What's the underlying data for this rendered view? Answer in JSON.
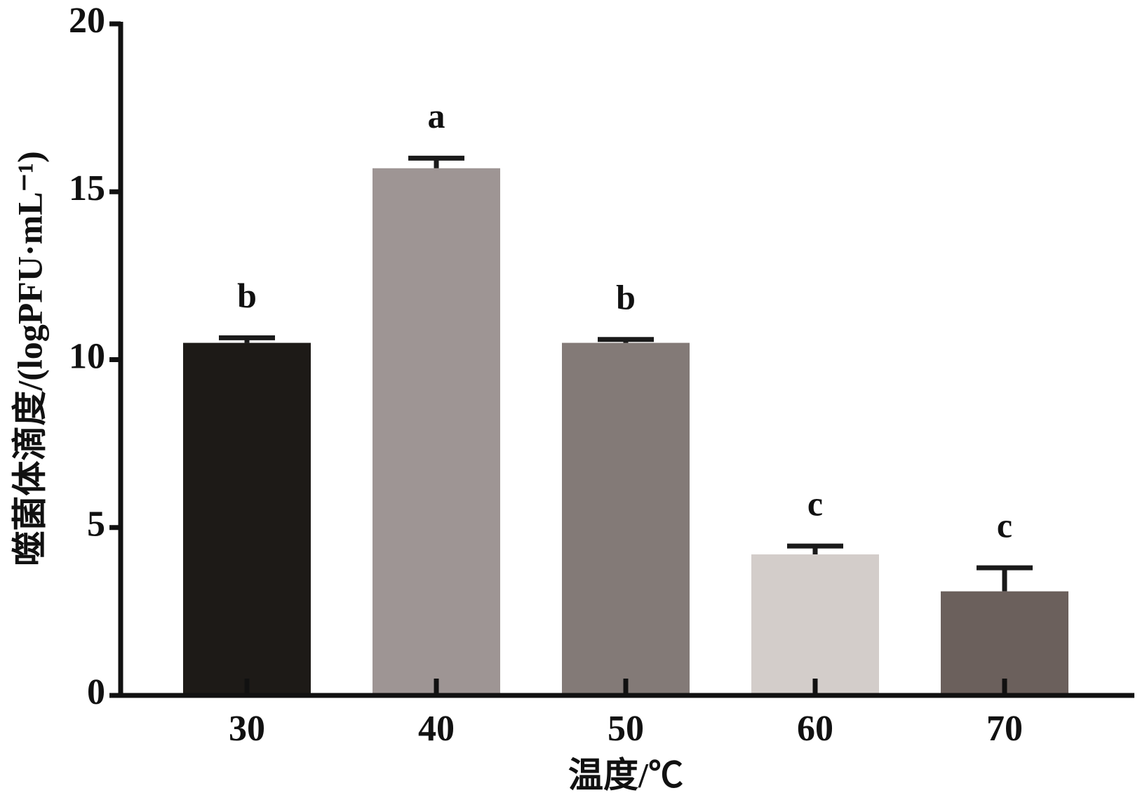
{
  "chart_data": {
    "type": "bar",
    "x_label": "温度/℃",
    "y_label": "噬菌体滴度/(logPFU·mL⁻¹)",
    "categories": [
      "30",
      "40",
      "50",
      "60",
      "70"
    ],
    "values": [
      10.5,
      15.7,
      10.5,
      4.2,
      3.1
    ],
    "errors": [
      0.15,
      0.3,
      0.1,
      0.25,
      0.7
    ],
    "letters": [
      "b",
      "a",
      "b",
      "c",
      "c"
    ],
    "colors": [
      "#1d1a17",
      "#9e9594",
      "#837a77",
      "#d3cdca",
      "#6b605c"
    ],
    "ylim": [
      0,
      20
    ],
    "yticks": [
      0,
      5,
      10,
      15,
      20
    ],
    "grid": false
  }
}
